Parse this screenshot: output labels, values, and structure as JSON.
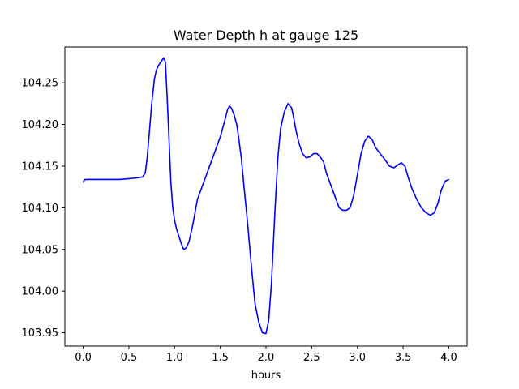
{
  "chart_data": {
    "type": "line",
    "title": "Water Depth h at gauge 125",
    "xlabel": "hours",
    "ylabel": "",
    "xlim": [
      -0.2,
      4.2
    ],
    "ylim": [
      103.934,
      104.293
    ],
    "xticks": [
      0.0,
      0.5,
      1.0,
      1.5,
      2.0,
      2.5,
      3.0,
      3.5,
      4.0
    ],
    "xtick_labels": [
      "0.0",
      "0.5",
      "1.0",
      "1.5",
      "2.0",
      "2.5",
      "3.0",
      "3.5",
      "4.0"
    ],
    "yticks": [
      103.95,
      104.0,
      104.05,
      104.1,
      104.15,
      104.2,
      104.25
    ],
    "ytick_labels": [
      "103.95",
      "104.00",
      "104.05",
      "104.10",
      "104.15",
      "104.20",
      "104.25"
    ],
    "grid": false,
    "series": [
      {
        "color": "#0000ff",
        "x": [
          0.0,
          0.02,
          0.1,
          0.2,
          0.3,
          0.4,
          0.5,
          0.6,
          0.65,
          0.68,
          0.7,
          0.72,
          0.75,
          0.78,
          0.8,
          0.82,
          0.85,
          0.88,
          0.9,
          0.92,
          0.94,
          0.96,
          0.98,
          1.0,
          1.02,
          1.05,
          1.08,
          1.1,
          1.13,
          1.16,
          1.2,
          1.25,
          1.3,
          1.35,
          1.4,
          1.45,
          1.5,
          1.55,
          1.58,
          1.6,
          1.62,
          1.65,
          1.68,
          1.7,
          1.73,
          1.76,
          1.8,
          1.84,
          1.88,
          1.92,
          1.96,
          2.0,
          2.03,
          2.06,
          2.1,
          2.13,
          2.16,
          2.2,
          2.24,
          2.28,
          2.3,
          2.33,
          2.36,
          2.4,
          2.44,
          2.48,
          2.52,
          2.56,
          2.6,
          2.63,
          2.66,
          2.7,
          2.75,
          2.8,
          2.84,
          2.88,
          2.92,
          2.96,
          3.0,
          3.04,
          3.08,
          3.12,
          3.16,
          3.2,
          3.25,
          3.3,
          3.35,
          3.4,
          3.45,
          3.48,
          3.52,
          3.56,
          3.6,
          3.65,
          3.7,
          3.75,
          3.8,
          3.84,
          3.88,
          3.92,
          3.96,
          4.0
        ],
        "y": [
          104.131,
          104.134,
          104.134,
          104.134,
          104.134,
          104.134,
          104.135,
          104.136,
          104.137,
          104.142,
          104.16,
          104.185,
          104.225,
          104.255,
          104.265,
          104.27,
          104.275,
          104.28,
          104.275,
          104.23,
          104.18,
          104.13,
          104.1,
          104.085,
          104.075,
          104.065,
          104.055,
          104.05,
          104.052,
          104.06,
          104.08,
          104.11,
          104.125,
          104.14,
          104.155,
          104.17,
          104.185,
          104.205,
          104.218,
          104.222,
          104.22,
          104.212,
          104.2,
          104.185,
          104.16,
          104.125,
          104.08,
          104.03,
          103.985,
          103.963,
          103.95,
          103.949,
          103.965,
          104.01,
          104.1,
          104.16,
          104.195,
          104.215,
          104.225,
          104.22,
          104.21,
          104.192,
          104.178,
          104.165,
          104.16,
          104.161,
          104.165,
          104.165,
          104.16,
          104.155,
          104.142,
          104.13,
          104.115,
          104.1,
          104.097,
          104.097,
          104.1,
          104.115,
          104.14,
          104.165,
          104.18,
          104.186,
          104.182,
          104.172,
          104.165,
          104.158,
          104.15,
          104.148,
          104.152,
          104.154,
          104.15,
          104.135,
          104.122,
          104.11,
          104.1,
          104.094,
          104.091,
          104.094,
          104.105,
          104.122,
          104.132,
          104.134
        ]
      }
    ]
  }
}
